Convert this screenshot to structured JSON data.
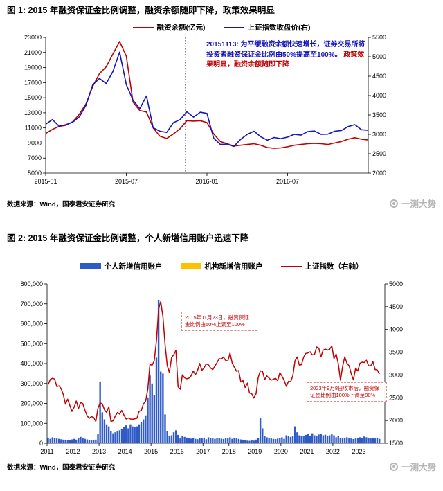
{
  "page": {
    "source_label": "数据来源：Wind，国泰君安证券研究",
    "watermark": "一测大势",
    "background": "#ffffff"
  },
  "figure1": {
    "title": "图 1: 2015 年融资保证金比例调整，融资余额随即下降，政策效果明显"
  },
  "figure2": {
    "title": "图 2: 2015 年融资保证金比例调整，个人新增信用账户迅速下降"
  },
  "chart_data": [
    {
      "type": "line",
      "title": "2015 年融资保证金比例调整，融资余额随即下降，政策效果明显",
      "x_unit": "months since 2015-01",
      "x_range": [
        0,
        24
      ],
      "x_step": 0.5,
      "x_ticks": [
        {
          "pos": 0,
          "label": "2015-01"
        },
        {
          "pos": 6,
          "label": "2015-07"
        },
        {
          "pos": 12,
          "label": "2016-01"
        },
        {
          "pos": 18,
          "label": "2016-07"
        }
      ],
      "left_axis": {
        "range": [
          5000,
          23000
        ],
        "ticks": [
          5000,
          7000,
          9000,
          11000,
          13000,
          15000,
          17000,
          19000,
          21000,
          23000
        ],
        "tick_labels": [
          "5000",
          "7000",
          "9000",
          "11000",
          "13000",
          "15000",
          "17000",
          "19000",
          "21000",
          "23000"
        ]
      },
      "right_axis": {
        "range": [
          2000,
          5500
        ],
        "ticks": [
          2000,
          2500,
          3000,
          3500,
          4000,
          4500,
          5000,
          5500
        ],
        "tick_labels": [
          "2000",
          "2500",
          "3000",
          "3500",
          "4000",
          "4500",
          "5000",
          "5500"
        ]
      },
      "vline": {
        "pos": 10.4,
        "date": "2015-11-13",
        "style": "dotted"
      },
      "annotation": {
        "text_blue": "20151113: 为平缓融资余额快速增长，证券交易所将投资者融资保证金比例由50%提高至100%。",
        "text_red": "政策效果明显，融资余额随即下降"
      },
      "legend_position": "top",
      "grid": false,
      "series": [
        {
          "name": "融资余额(亿元)",
          "axis": "left",
          "color": "#C00000",
          "values": [
            10250,
            10800,
            11200,
            11350,
            11800,
            12800,
            14200,
            16500,
            18200,
            19100,
            20800,
            22450,
            20500,
            14400,
            13300,
            13100,
            11000,
            9900,
            9600,
            10200,
            10900,
            11950,
            11900,
            11950,
            11700,
            10200,
            9200,
            8900,
            8600,
            8700,
            8800,
            8900,
            8700,
            8400,
            8300,
            8350,
            8500,
            8700,
            8800,
            8900,
            8950,
            8900,
            8800,
            9000,
            9200,
            9500,
            9700,
            9500,
            9400
          ]
        },
        {
          "name": "上证指数收盘价(右)",
          "axis": "right",
          "color": "#1414B8",
          "values": [
            3260,
            3380,
            3210,
            3250,
            3310,
            3450,
            3750,
            4280,
            4440,
            4310,
            4620,
            5120,
            4280,
            3880,
            3660,
            3990,
            3170,
            3080,
            3050,
            3300,
            3380,
            3580,
            3445,
            3570,
            3540,
            2900,
            2740,
            2750,
            2690,
            2870,
            3000,
            3080,
            2940,
            2850,
            2920,
            2890,
            2930,
            3000,
            2980,
            3070,
            3085,
            3000,
            3005,
            3080,
            3100,
            3200,
            3250,
            3120,
            3105
          ]
        }
      ]
    },
    {
      "type": "bar",
      "title": "2015 年融资保证金比例调整，个人新增信用账户迅速下降",
      "x_unit": "months since 2011-01",
      "x_range": [
        0,
        156
      ],
      "x_step": 1,
      "x_ticks": [
        {
          "pos": 0,
          "label": "2011"
        },
        {
          "pos": 12,
          "label": "2012"
        },
        {
          "pos": 24,
          "label": "2013"
        },
        {
          "pos": 36,
          "label": "2014"
        },
        {
          "pos": 48,
          "label": "2015"
        },
        {
          "pos": 60,
          "label": "2016"
        },
        {
          "pos": 72,
          "label": "2017"
        },
        {
          "pos": 84,
          "label": "2018"
        },
        {
          "pos": 96,
          "label": "2019"
        },
        {
          "pos": 108,
          "label": "2020"
        },
        {
          "pos": 120,
          "label": "2021"
        },
        {
          "pos": 132,
          "label": "2022"
        },
        {
          "pos": 144,
          "label": "2023"
        }
      ],
      "left_axis": {
        "range": [
          0,
          800000
        ],
        "ticks": [
          0,
          100000,
          200000,
          300000,
          400000,
          500000,
          600000,
          700000,
          800000
        ],
        "tick_labels": [
          "0",
          "100,000",
          "200,000",
          "300,000",
          "400,000",
          "500,000",
          "600,000",
          "700,000",
          "800,000"
        ]
      },
      "right_axis": {
        "range": [
          1500,
          5000
        ],
        "ticks": [
          1500,
          2000,
          2500,
          3000,
          3500,
          4000,
          4500,
          5000
        ],
        "tick_labels": [
          "1500",
          "2000",
          "2500",
          "3000",
          "3500",
          "4000",
          "4500",
          "5000"
        ]
      },
      "annotations": [
        {
          "text": "2015年11月23日，融资保证金比例由50%上调至100%"
        },
        {
          "text": "2023年9月8日收市后，融资保证金比例由100%下调至80%"
        }
      ],
      "legend_position": "top",
      "grid": false,
      "series": [
        {
          "name": "个人新增信用账户",
          "type": "bar",
          "axis": "left",
          "color": "#2E5BC7",
          "values": [
            28000,
            22000,
            30000,
            26000,
            24000,
            22000,
            20000,
            18000,
            16000,
            15000,
            17000,
            19000,
            22000,
            18000,
            28000,
            32000,
            26000,
            22000,
            19000,
            17000,
            15000,
            16000,
            18000,
            45000,
            310000,
            155000,
            120000,
            95000,
            85000,
            60000,
            50000,
            55000,
            60000,
            65000,
            70000,
            80000,
            90000,
            75000,
            95000,
            85000,
            80000,
            85000,
            95000,
            105000,
            120000,
            140000,
            230000,
            340000,
            300000,
            240000,
            430000,
            720000,
            360000,
            350000,
            145000,
            60000,
            35000,
            40000,
            55000,
            65000,
            42000,
            24000,
            38000,
            32000,
            28000,
            25000,
            23000,
            26000,
            22000,
            20000,
            26000,
            24000,
            28000,
            20000,
            30000,
            26000,
            24000,
            22000,
            25000,
            27000,
            23000,
            21000,
            26000,
            24000,
            30000,
            22000,
            28000,
            24000,
            22000,
            19000,
            17000,
            15000,
            13000,
            12000,
            14000,
            13000,
            18000,
            28000,
            125000,
            75000,
            38000,
            30000,
            26000,
            24000,
            22000,
            21000,
            23000,
            27000,
            30000,
            22000,
            40000,
            35000,
            32000,
            38000,
            85000,
            55000,
            40000,
            35000,
            38000,
            42000,
            46000,
            36000,
            50000,
            40000,
            38000,
            44000,
            46000,
            40000,
            43000,
            38000,
            40000,
            45000,
            40000,
            30000,
            36000,
            26000,
            24000,
            28000,
            30000,
            26000,
            24000,
            21000,
            24000,
            26000,
            30000,
            26000,
            34000,
            30000,
            26000,
            24000,
            28000,
            24000,
            26000,
            22000
          ]
        },
        {
          "name": "机构新增信用账户",
          "type": "bar",
          "axis": "left",
          "color": "#FFC000",
          "values": [
            400,
            450,
            500,
            420,
            430,
            410,
            390,
            380,
            360,
            370,
            390,
            410,
            420,
            380,
            450,
            470,
            430,
            400,
            380,
            360,
            340,
            360,
            390,
            520,
            900,
            700,
            650,
            600,
            580,
            520,
            480,
            500,
            520,
            540,
            560,
            600,
            620,
            580,
            640,
            600,
            590,
            610,
            650,
            700,
            760,
            820,
            1100,
            1600,
            1500,
            1200,
            2000,
            3000,
            1800,
            1700,
            900,
            500,
            350,
            380,
            450,
            500,
            420,
            300,
            380,
            350,
            320,
            300,
            290,
            310,
            290,
            280,
            320,
            300,
            330,
            280,
            350,
            320,
            300,
            290,
            310,
            330,
            300,
            280,
            320,
            300,
            340,
            280,
            330,
            300,
            280,
            260,
            240,
            220,
            200,
            190,
            210,
            200,
            240,
            320,
            900,
            600,
            380,
            320,
            290,
            270,
            260,
            250,
            270,
            300,
            320,
            260,
            400,
            360,
            340,
            380,
            700,
            500,
            400,
            360,
            380,
            400,
            430,
            360,
            460,
            400,
            380,
            420,
            440,
            400,
            420,
            380,
            400,
            430,
            400,
            320,
            370,
            290,
            270,
            300,
            320,
            290,
            270,
            250,
            280,
            300,
            330,
            290,
            360,
            320,
            290,
            270,
            300,
            270,
            290,
            250
          ]
        },
        {
          "name": "上证指数（右轴）",
          "type": "line",
          "axis": "right",
          "color": "#C00000",
          "values": [
            2790,
            2905,
            2928,
            2911,
            2743,
            2762,
            2701,
            2567,
            2359,
            2470,
            2333,
            2199,
            2293,
            2428,
            2262,
            2396,
            2372,
            2225,
            2103,
            2047,
            2086,
            2068,
            1980,
            2269,
            2385,
            2366,
            2237,
            2177,
            2301,
            1979,
            1994,
            2098,
            2175,
            2141,
            2221,
            2116,
            2033,
            2056,
            2033,
            2026,
            2039,
            2048,
            2201,
            2217,
            2364,
            2420,
            2683,
            3235,
            3210,
            3310,
            3748,
            4442,
            4612,
            4277,
            3664,
            3206,
            3053,
            3383,
            3445,
            3539,
            2738,
            2688,
            3004,
            2938,
            2917,
            2930,
            2979,
            3085,
            3005,
            3100,
            3250,
            3104,
            3159,
            3242,
            3223,
            3155,
            3117,
            3192,
            3273,
            3361,
            3349,
            3393,
            3317,
            3307,
            3481,
            3259,
            3169,
            3082,
            3095,
            2847,
            2876,
            2725,
            2821,
            2603,
            2588,
            2494,
            2585,
            2941,
            3091,
            3078,
            2899,
            2979,
            2933,
            2886,
            2905,
            2929,
            2872,
            3050,
            2977,
            2880,
            2750,
            2860,
            2852,
            2985,
            3310,
            3396,
            3218,
            3225,
            3392,
            3473,
            3483,
            3509,
            3442,
            3447,
            3615,
            3591,
            3397,
            3544,
            3568,
            3547,
            3564,
            3640,
            3361,
            3462,
            3252,
            2886,
            3186,
            3399,
            3253,
            3202,
            3024,
            2893,
            3151,
            3089,
            3256,
            3280,
            3273,
            3323,
            3205,
            3202,
            3291,
            3120,
            3110,
            3021
          ]
        }
      ]
    }
  ]
}
